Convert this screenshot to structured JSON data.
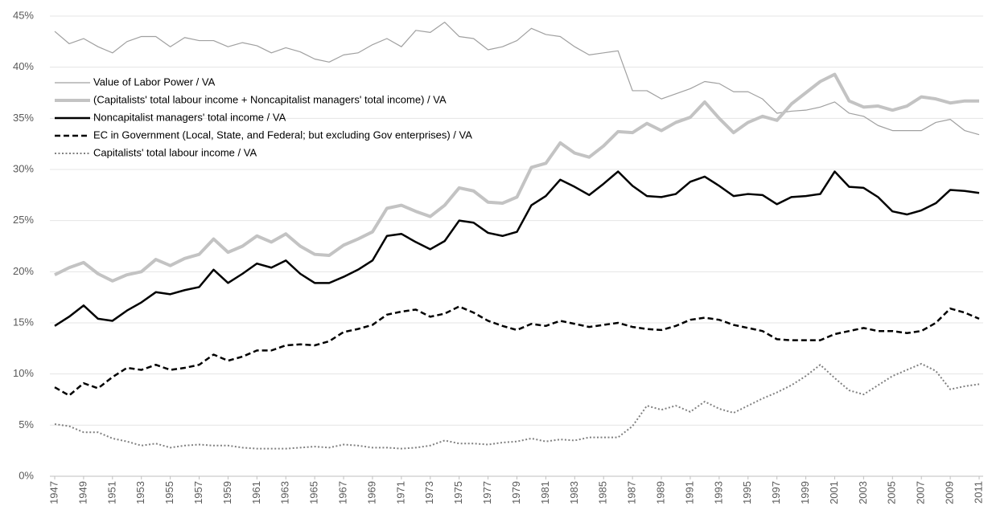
{
  "chart_data": {
    "type": "line",
    "x": [
      1947,
      1948,
      1949,
      1950,
      1951,
      1952,
      1953,
      1954,
      1955,
      1956,
      1957,
      1958,
      1959,
      1960,
      1961,
      1962,
      1963,
      1964,
      1965,
      1966,
      1967,
      1968,
      1969,
      1970,
      1971,
      1972,
      1973,
      1974,
      1975,
      1976,
      1977,
      1978,
      1979,
      1980,
      1981,
      1982,
      1983,
      1984,
      1985,
      1986,
      1987,
      1988,
      1989,
      1990,
      1991,
      1992,
      1993,
      1994,
      1995,
      1996,
      1997,
      1998,
      1999,
      2000,
      2001,
      2002,
      2003,
      2004,
      2005,
      2006,
      2007,
      2008,
      2009,
      2010,
      2011
    ],
    "xlim": [
      1947,
      2011
    ],
    "xticks": [
      1947,
      1949,
      1951,
      1953,
      1955,
      1957,
      1959,
      1961,
      1963,
      1965,
      1967,
      1969,
      1971,
      1973,
      1975,
      1977,
      1979,
      1981,
      1983,
      1985,
      1987,
      1989,
      1991,
      1993,
      1995,
      1997,
      1999,
      2001,
      2003,
      2005,
      2007,
      2009,
      2011
    ],
    "ylim": [
      0,
      45
    ],
    "yticks": [
      {
        "value": 0,
        "label": "0%"
      },
      {
        "value": 5,
        "label": "5%"
      },
      {
        "value": 10,
        "label": "10%"
      },
      {
        "value": 15,
        "label": "15%"
      },
      {
        "value": 20,
        "label": "20%"
      },
      {
        "value": 25,
        "label": "25%"
      },
      {
        "value": 30,
        "label": "30%"
      },
      {
        "value": 35,
        "label": "35%"
      },
      {
        "value": 40,
        "label": "40%"
      },
      {
        "value": 45,
        "label": "45%"
      }
    ],
    "grid": true,
    "legend": "upper left",
    "series": [
      {
        "name": "Value of Labor Power / VA",
        "color": "#a0a0a0",
        "style": "solid",
        "values": [
          43.5,
          42.3,
          42.8,
          42.0,
          41.4,
          42.5,
          43.0,
          43.0,
          42.0,
          42.9,
          42.6,
          42.6,
          42.0,
          42.4,
          42.1,
          41.4,
          41.9,
          41.5,
          40.8,
          40.5,
          41.2,
          41.4,
          42.2,
          42.8,
          42.0,
          43.6,
          43.4,
          44.4,
          43.0,
          42.8,
          41.7,
          42.0,
          42.6,
          43.8,
          43.2,
          43.0,
          42.0,
          41.2,
          41.4,
          41.6,
          37.7,
          37.7,
          36.9,
          37.4,
          37.9,
          38.6,
          38.4,
          37.6,
          37.6,
          36.9,
          35.5,
          35.7,
          35.8,
          36.1,
          36.6,
          35.5,
          35.2,
          34.3,
          33.8,
          33.8,
          33.8,
          34.6,
          34.9,
          33.8,
          33.4
        ]
      },
      {
        "name": "(Capitalists' total labour income + Noncapitalist managers' total income) / VA",
        "color": "#c3c3c3",
        "style": "solid",
        "values": [
          19.7,
          20.4,
          20.9,
          19.8,
          19.1,
          19.7,
          20.0,
          21.2,
          20.6,
          21.3,
          21.7,
          23.2,
          21.9,
          22.5,
          23.5,
          22.9,
          23.7,
          22.5,
          21.7,
          21.6,
          22.6,
          23.2,
          23.9,
          26.2,
          26.5,
          25.9,
          25.4,
          26.5,
          28.2,
          27.9,
          26.8,
          26.7,
          27.3,
          30.2,
          30.6,
          32.6,
          31.6,
          31.2,
          32.3,
          33.7,
          33.6,
          34.5,
          33.8,
          34.6,
          35.1,
          36.6,
          35.0,
          33.6,
          34.6,
          35.2,
          34.8,
          36.4,
          37.5,
          38.6,
          39.3,
          36.7,
          36.1,
          36.2,
          35.8,
          36.2,
          37.1,
          36.9,
          36.5,
          36.7,
          36.7
        ]
      },
      {
        "name": "Noncapitalist managers' total income / VA",
        "color": "#000000",
        "style": "solid",
        "values": [
          14.7,
          15.6,
          16.7,
          15.4,
          15.2,
          16.2,
          17.0,
          18.0,
          17.8,
          18.2,
          18.5,
          20.2,
          18.9,
          19.8,
          20.8,
          20.4,
          21.1,
          19.8,
          18.9,
          18.9,
          19.5,
          20.2,
          21.1,
          23.5,
          23.7,
          22.9,
          22.2,
          23.0,
          25.0,
          24.8,
          23.8,
          23.5,
          23.9,
          26.5,
          27.4,
          29.0,
          28.3,
          27.5,
          28.6,
          29.8,
          28.4,
          27.4,
          27.3,
          27.6,
          28.8,
          29.3,
          28.4,
          27.4,
          27.6,
          27.5,
          26.6,
          27.3,
          27.4,
          27.6,
          29.8,
          28.3,
          28.2,
          27.3,
          25.9,
          25.6,
          26.0,
          26.7,
          28.0,
          27.9,
          27.7
        ]
      },
      {
        "name": "EC in Government (Local, State, and Federal; but excluding Gov enterprises) / VA",
        "color": "#000000",
        "style": "dashed",
        "values": [
          8.7,
          7.9,
          9.1,
          8.6,
          9.7,
          10.6,
          10.4,
          10.9,
          10.4,
          10.6,
          10.9,
          11.9,
          11.3,
          11.7,
          12.3,
          12.3,
          12.8,
          12.9,
          12.8,
          13.2,
          14.1,
          14.4,
          14.8,
          15.8,
          16.1,
          16.3,
          15.6,
          15.9,
          16.6,
          16.0,
          15.2,
          14.7,
          14.3,
          14.9,
          14.7,
          15.2,
          14.9,
          14.6,
          14.8,
          15.0,
          14.6,
          14.4,
          14.3,
          14.7,
          15.3,
          15.5,
          15.3,
          14.8,
          14.5,
          14.2,
          13.4,
          13.3,
          13.3,
          13.3,
          13.9,
          14.2,
          14.5,
          14.2,
          14.2,
          14.0,
          14.2,
          15.0,
          16.4,
          16.0,
          15.4
        ]
      },
      {
        "name": "Capitalists' total labour income / VA",
        "color": "#808080",
        "style": "dotted",
        "values": [
          5.1,
          4.9,
          4.3,
          4.3,
          3.7,
          3.4,
          3.0,
          3.2,
          2.8,
          3.0,
          3.1,
          3.0,
          3.0,
          2.8,
          2.7,
          2.7,
          2.7,
          2.8,
          2.9,
          2.8,
          3.1,
          3.0,
          2.8,
          2.8,
          2.7,
          2.8,
          3.0,
          3.5,
          3.2,
          3.2,
          3.1,
          3.3,
          3.4,
          3.7,
          3.4,
          3.6,
          3.5,
          3.8,
          3.8,
          3.8,
          4.9,
          6.9,
          6.5,
          6.9,
          6.3,
          7.3,
          6.6,
          6.2,
          6.9,
          7.6,
          8.2,
          8.9,
          9.8,
          10.9,
          9.6,
          8.4,
          8.0,
          8.9,
          9.8,
          10.4,
          11.0,
          10.3,
          8.5,
          8.8,
          9.0
        ]
      }
    ]
  }
}
